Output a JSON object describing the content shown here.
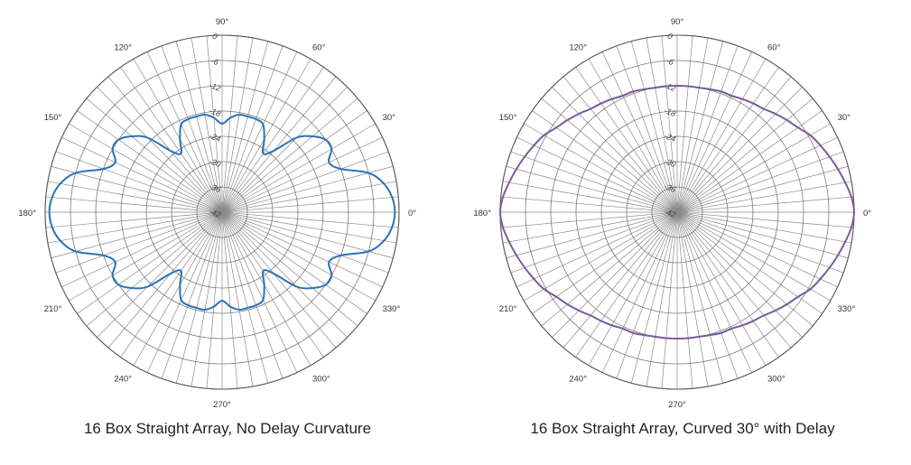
{
  "chart_data": [
    {
      "type": "polar-line",
      "title": "16 Box Straight Array, No Delay Curvature",
      "angle_labels": [
        "0°",
        "30°",
        "60°",
        "90°",
        "120°",
        "150°",
        "180°",
        "210°",
        "240°",
        "270°",
        "300°",
        "330°"
      ],
      "radial_tick_labels": [
        "0",
        "-6",
        "-12",
        "-18",
        "-24",
        "-30",
        "-36",
        "-42"
      ],
      "rlim": [
        -42,
        0
      ],
      "grid": true,
      "series": [
        {
          "color": "#2a72b8",
          "theta_deg": [
            0,
            5,
            10,
            15,
            20,
            25,
            30,
            35,
            40,
            45,
            50,
            55,
            60,
            65,
            70,
            75,
            80,
            85,
            90,
            95,
            100,
            105,
            110,
            115,
            120,
            125,
            130,
            135,
            140,
            145,
            150,
            155,
            160,
            165,
            170,
            175,
            180,
            185,
            190,
            195,
            200,
            205,
            210,
            215,
            220,
            225,
            230,
            235,
            240,
            245,
            250,
            255,
            260,
            265,
            270,
            275,
            280,
            285,
            290,
            295,
            300,
            305,
            310,
            315,
            320,
            325,
            330,
            335,
            340,
            345,
            350,
            355
          ],
          "r_db": [
            -1,
            -1.5,
            -3,
            -6,
            -12,
            -14,
            -12,
            -12,
            -14,
            -17,
            -23,
            -25,
            -22,
            -19,
            -18.5,
            -18.5,
            -18.5,
            -19.5,
            -21,
            -19.5,
            -18.5,
            -18.5,
            -18.5,
            -19,
            -22,
            -25,
            -23,
            -17,
            -14,
            -12,
            -12,
            -14,
            -12,
            -6,
            -3,
            -1.5,
            -1,
            -1.5,
            -3,
            -6,
            -12,
            -14,
            -12,
            -12,
            -14,
            -17,
            -23,
            -25,
            -22,
            -19,
            -18.5,
            -18.5,
            -18.5,
            -19.5,
            -21,
            -19.5,
            -18.5,
            -18.5,
            -18.5,
            -19,
            -22,
            -25,
            -23,
            -17,
            -14,
            -12,
            -12,
            -14,
            -12,
            -6,
            -3,
            -1.5
          ]
        }
      ]
    },
    {
      "type": "polar-line",
      "title": "16 Box Straight Array, Curved 30° with Delay",
      "angle_labels": [
        "0°",
        "30°",
        "60°",
        "90°",
        "120°",
        "150°",
        "180°",
        "210°",
        "240°",
        "270°",
        "300°",
        "330°"
      ],
      "radial_tick_labels": [
        "0",
        "-6",
        "-12",
        "-18",
        "-24",
        "-30",
        "-36",
        "-42"
      ],
      "rlim": [
        -42,
        0
      ],
      "grid": true,
      "series": [
        {
          "color": "#7a5a9a",
          "theta_deg": [
            0,
            5,
            10,
            15,
            20,
            25,
            30,
            35,
            40,
            45,
            50,
            55,
            60,
            65,
            70,
            75,
            80,
            85,
            90,
            95,
            100,
            105,
            110,
            115,
            120,
            125,
            130,
            135,
            140,
            145,
            150,
            155,
            160,
            165,
            170,
            175,
            180,
            185,
            190,
            195,
            200,
            205,
            210,
            215,
            220,
            225,
            230,
            235,
            240,
            245,
            250,
            255,
            260,
            265,
            270,
            275,
            280,
            285,
            290,
            295,
            300,
            305,
            310,
            315,
            320,
            325,
            330,
            335,
            340,
            345,
            350,
            355
          ],
          "r_db": [
            0,
            -0.5,
            -1.5,
            -2.5,
            -3.5,
            -4.5,
            -5.5,
            -7,
            -8,
            -9,
            -10,
            -10.5,
            -11,
            -11.5,
            -11.5,
            -11.8,
            -12,
            -12,
            -12,
            -12,
            -12,
            -11.8,
            -11.5,
            -11.5,
            -11,
            -10.5,
            -10,
            -9,
            -8,
            -7,
            -5.5,
            -4.5,
            -3.5,
            -2.5,
            -1.5,
            -0.5,
            0,
            -0.5,
            -1.5,
            -2.5,
            -3.5,
            -4.5,
            -5.5,
            -7,
            -8,
            -9,
            -10,
            -10.5,
            -11,
            -11.5,
            -11.5,
            -11.8,
            -12,
            -12,
            -12,
            -12,
            -12,
            -11.8,
            -11.5,
            -11.5,
            -11,
            -10.5,
            -10,
            -9,
            -8,
            -7,
            -5.5,
            -4.5,
            -3.5,
            -2.5,
            -1.5,
            -0.5
          ]
        }
      ]
    }
  ]
}
